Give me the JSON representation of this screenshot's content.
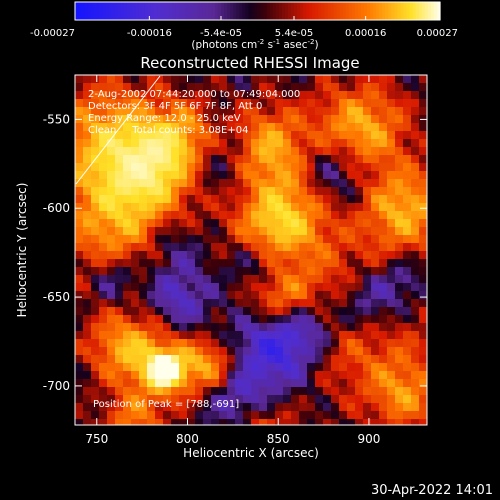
{
  "chart_data": {
    "type": "heatmap",
    "title": "Reconstructed RHESSI Image",
    "xlabel": "Heliocentric X (arcsec)",
    "ylabel": "Heliocentric Y (arcsec)",
    "xlim": [
      738,
      932
    ],
    "ylim": [
      -722,
      -525
    ],
    "x_ticks": [
      750,
      800,
      850,
      900
    ],
    "y_ticks": [
      -550,
      -600,
      -650,
      -700
    ],
    "colorbar": {
      "ticks": [
        "-0.00027",
        "-0.00016",
        "-5.4e-05",
        "5.4e-05",
        "0.00016",
        "0.00027"
      ],
      "min": -0.00027,
      "max": 0.00027,
      "unit_label": "(photons cm",
      "unit_sup1": "-2",
      "unit_mid": " s",
      "unit_sup2": "-1",
      "unit_end": " asec",
      "unit_sup3": "-2",
      "unit_close": ")"
    },
    "annotations": [
      "2-Aug-2002 07:44:20.000 to 07:49:04.000",
      "Detectors: 3F 4F 5F 6F 7F 8F, Att 0",
      "Energy Range: 12.0 - 25.0 keV",
      "Clean     Total counts: 3.08E+04"
    ],
    "peak_label": "Position of Peak = [788,-691]",
    "peak": [
      788,
      -691
    ],
    "grid": false,
    "blobs": [
      [
        757,
        -560,
        22,
        0.8
      ],
      [
        768,
        -605,
        26,
        0.95
      ],
      [
        800,
        -560,
        14,
        0.85
      ],
      [
        842,
        -565,
        16,
        0.9
      ],
      [
        895,
        -556,
        18,
        0.9
      ],
      [
        780,
        -575,
        14,
        0.7
      ],
      [
        920,
        -600,
        16,
        0.85
      ],
      [
        857,
        -600,
        18,
        0.75
      ],
      [
        845,
        -615,
        14,
        0.6
      ],
      [
        890,
        -660,
        28,
        0.75
      ],
      [
        850,
        -650,
        12,
        0.6
      ],
      [
        765,
        -678,
        14,
        0.8
      ],
      [
        788,
        -691,
        12,
        1.0
      ],
      [
        812,
        -688,
        10,
        0.7
      ],
      [
        770,
        -720,
        12,
        0.6
      ],
      [
        840,
        -722,
        12,
        0.55
      ],
      [
        920,
        -705,
        14,
        0.65
      ],
      [
        790,
        -620,
        14,
        -0.6
      ],
      [
        817,
        -568,
        16,
        -0.6
      ],
      [
        795,
        -650,
        12,
        -0.55
      ],
      [
        840,
        -630,
        12,
        -0.5
      ],
      [
        850,
        -678,
        16,
        -0.95
      ],
      [
        870,
        -665,
        12,
        -0.5
      ],
      [
        900,
        -653,
        14,
        -0.85
      ],
      [
        880,
        -580,
        14,
        -0.6
      ],
      [
        760,
        -640,
        10,
        -0.5
      ],
      [
        830,
        -710,
        12,
        -0.55
      ],
      [
        920,
        -640,
        10,
        -0.4
      ]
    ]
  },
  "timestamp": "30-Apr-2022 14:01"
}
